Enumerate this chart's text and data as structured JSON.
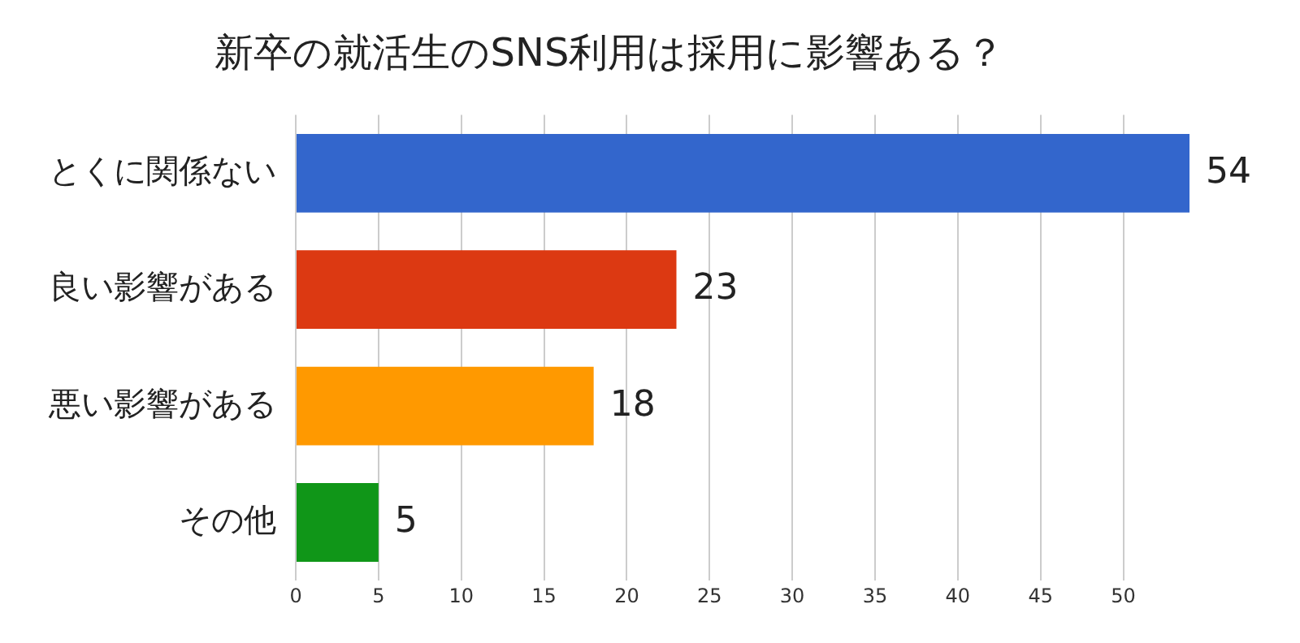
{
  "chart_data": {
    "type": "bar",
    "orientation": "horizontal",
    "title": "新卒の就活生のSNS利用は採用に影響ある？",
    "categories": [
      "とくに関係ない",
      "良い影響がある",
      "悪い影響がある",
      "その他"
    ],
    "values": [
      54,
      23,
      18,
      5
    ],
    "colors": [
      "#3366cc",
      "#dc3912",
      "#ff9900",
      "#109618"
    ],
    "xlim": [
      0,
      54
    ],
    "xticks": [
      0,
      5,
      10,
      15,
      20,
      25,
      30,
      35,
      40,
      45,
      50
    ],
    "grid": "x",
    "legend": false,
    "data_labels": true
  }
}
